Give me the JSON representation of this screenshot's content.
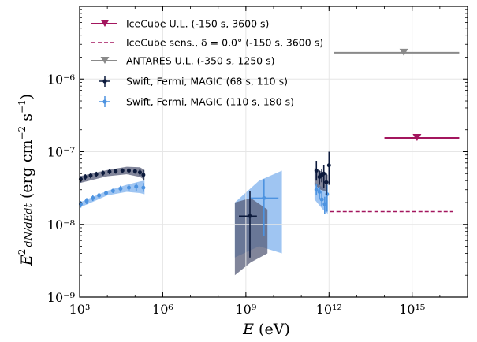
{
  "chart_data": {
    "type": "scatter",
    "xlabel": "E (eV)",
    "ylabel": "E² dN/dEdt (erg cm⁻² s⁻¹)",
    "x_scale": "log",
    "y_scale": "log",
    "xlim": [
      1000,
      1e+17
    ],
    "ylim": [
      1e-09,
      1e-05
    ],
    "x_ticks": [
      {
        "value": 1000.0,
        "label": "10³"
      },
      {
        "value": 1000000.0,
        "label": "10⁶"
      },
      {
        "value": 1000000000.0,
        "label": "10⁹"
      },
      {
        "value": 1000000000000.0,
        "label": "10¹²"
      },
      {
        "value": 1000000000000000.0,
        "label": "10¹⁵"
      }
    ],
    "y_ticks": [
      {
        "value": 1e-09,
        "label": "10⁻⁹"
      },
      {
        "value": 1e-08,
        "label": "10⁻⁸"
      },
      {
        "value": 1e-07,
        "label": "10⁻⁷"
      },
      {
        "value": 1e-06,
        "label": "10⁻⁶"
      }
    ],
    "grid": true,
    "legend_position": "top-left",
    "colors": {
      "icecube": "#a3165e",
      "antares": "#8a8a8a",
      "early": "#0c1a3c",
      "early_band": "#575c78",
      "late": "#4d93e0",
      "late_band": "#7fb2ee"
    },
    "series": [
      {
        "name": "IceCube U.L. (-150 s, 3600 s)",
        "kind": "upper_limit",
        "color": "#a3165e",
        "points": [
          {
            "x": 1500000000000000.0,
            "y": 1.55e-07,
            "xmin": 100000000000000.0,
            "xmax": 5e+16
          }
        ]
      },
      {
        "name": "IceCube sens., δ = 0.0° (-150 s, 3600 s)",
        "kind": "sensitivity_line",
        "color": "#a3165e",
        "segment": {
          "xmin": 1100000000000.0,
          "xmax": 3e+16,
          "y": 1.5e-08
        }
      },
      {
        "name": "ANTARES U.L. (-350 s, 1250 s)",
        "kind": "upper_limit",
        "color": "#8a8a8a",
        "points": [
          {
            "x": 500000000000000.0,
            "y": 2.3e-06,
            "xmin": 1500000000000.0,
            "xmax": 5e+16
          }
        ]
      },
      {
        "name": "Swift, Fermi, MAGIC (68 s, 110 s)",
        "kind": "points",
        "color": "#0c1a3c",
        "points": [
          {
            "x": 1100.0,
            "y": 4.2e-08,
            "ylo": 3.8e-08,
            "yhi": 4.6e-08
          },
          {
            "x": 1600.0,
            "y": 4.5e-08,
            "ylo": 4.1e-08,
            "yhi": 4.9e-08
          },
          {
            "x": 2500.0,
            "y": 4.7e-08,
            "ylo": 4.3e-08,
            "yhi": 5.1e-08
          },
          {
            "x": 4000.0,
            "y": 4.9e-08,
            "ylo": 4.5e-08,
            "yhi": 5.3e-08
          },
          {
            "x": 7000.0,
            "y": 5.1e-08,
            "ylo": 4.7e-08,
            "yhi": 5.5e-08
          },
          {
            "x": 12000.0,
            "y": 5.3e-08,
            "ylo": 4.9e-08,
            "yhi": 5.7e-08
          },
          {
            "x": 20000.0,
            "y": 5.4e-08,
            "ylo": 5e-08,
            "yhi": 5.8e-08
          },
          {
            "x": 35000.0,
            "y": 5.5e-08,
            "ylo": 5.1e-08,
            "yhi": 5.9e-08
          },
          {
            "x": 60000.0,
            "y": 5.5e-08,
            "ylo": 5.1e-08,
            "yhi": 5.9e-08
          },
          {
            "x": 100000.0,
            "y": 5.4e-08,
            "ylo": 5e-08,
            "yhi": 5.8e-08
          },
          {
            "x": 150000.0,
            "y": 5.2e-08,
            "ylo": 4.7e-08,
            "yhi": 5.7e-08
          },
          {
            "x": 200000.0,
            "y": 4.8e-08,
            "ylo": 4e-08,
            "yhi": 5.6e-08
          },
          {
            "x": 1400000000.0,
            "y": 1.3e-08,
            "ylo": 3.5e-09,
            "yhi": 2.9e-08,
            "xlo": 560000000.0,
            "xhi": 2500000000.0
          },
          {
            "x": 350000000000.0,
            "y": 5.5e-08,
            "ylo": 4e-08,
            "yhi": 7.5e-08
          },
          {
            "x": 450000000000.0,
            "y": 4.5e-08,
            "ylo": 3.5e-08,
            "yhi": 5.5e-08
          },
          {
            "x": 550000000000.0,
            "y": 4.8e-08,
            "ylo": 3.8e-08,
            "yhi": 5.8e-08
          },
          {
            "x": 650000000000.0,
            "y": 5e-08,
            "ylo": 3.2e-08,
            "yhi": 6.5e-08
          },
          {
            "x": 800000000000.0,
            "y": 3.8e-08,
            "ylo": 2.5e-08,
            "yhi": 5e-08
          },
          {
            "x": 1000000000000.0,
            "y": 6.5e-08,
            "ylo": 3.5e-08,
            "yhi": 1e-07
          }
        ],
        "band": [
          {
            "x": 1000.0,
            "lo": 3.7e-08,
            "hi": 4.6e-08
          },
          {
            "x": 10000.0,
            "lo": 4.6e-08,
            "hi": 5.6e-08
          },
          {
            "x": 50000.0,
            "lo": 4.9e-08,
            "hi": 6.2e-08
          },
          {
            "x": 150000.0,
            "lo": 4.5e-08,
            "hi": 6.1e-08
          },
          {
            "x": 220000.0,
            "lo": 4.1e-08,
            "hi": 5.6e-08
          }
        ],
        "band2": [
          {
            "x": 400000000.0,
            "lo": 2e-09,
            "hi": 2e-08
          },
          {
            "x": 1500000000.0,
            "lo": 3e-09,
            "hi": 2.3e-08
          },
          {
            "x": 6000000000.0,
            "lo": 4e-09,
            "hi": 1.6e-08
          }
        ],
        "band3": [
          {
            "x": 300000000000.0,
            "lo": 3.5e-08,
            "hi": 6e-08
          },
          {
            "x": 500000000000.0,
            "lo": 3e-08,
            "hi": 5.4e-08
          },
          {
            "x": 900000000000.0,
            "lo": 2.8e-08,
            "hi": 4.8e-08
          }
        ]
      },
      {
        "name": "Swift, Fermi, MAGIC (110 s, 180 s)",
        "kind": "points",
        "color": "#4d93e0",
        "points": [
          {
            "x": 1100.0,
            "y": 1.9e-08,
            "ylo": 1.7e-08,
            "yhi": 2.1e-08
          },
          {
            "x": 1800.0,
            "y": 2.1e-08,
            "ylo": 1.9e-08,
            "yhi": 2.3e-08
          },
          {
            "x": 3000.0,
            "y": 2.3e-08,
            "ylo": 2.1e-08,
            "yhi": 2.5e-08
          },
          {
            "x": 5000.0,
            "y": 2.5e-08,
            "ylo": 2.3e-08,
            "yhi": 2.7e-08
          },
          {
            "x": 9000.0,
            "y": 2.7e-08,
            "ylo": 2.5e-08,
            "yhi": 2.9e-08
          },
          {
            "x": 16000.0,
            "y": 2.9e-08,
            "ylo": 2.7e-08,
            "yhi": 3.1e-08
          },
          {
            "x": 30000.0,
            "y": 3.1e-08,
            "ylo": 2.8e-08,
            "yhi": 3.4e-08
          },
          {
            "x": 60000.0,
            "y": 3.2e-08,
            "ylo": 2.9e-08,
            "yhi": 3.5e-08
          },
          {
            "x": 110000.0,
            "y": 3.3e-08,
            "ylo": 2.9e-08,
            "yhi": 3.7e-08
          },
          {
            "x": 200000.0,
            "y": 3.2e-08,
            "ylo": 2.8e-08,
            "yhi": 3.7e-08
          },
          {
            "x": 4500000000.0,
            "y": 2.3e-08,
            "ylo": 7e-09,
            "yhi": 4.2e-08,
            "xlo": 1500000000.0,
            "xhi": 15000000000.0
          },
          {
            "x": 350000000000.0,
            "y": 3e-08,
            "ylo": 2.5e-08,
            "yhi": 3.6e-08
          },
          {
            "x": 450000000000.0,
            "y": 2.8e-08,
            "ylo": 2.2e-08,
            "yhi": 3.3e-08
          },
          {
            "x": 550000000000.0,
            "y": 2.2e-08,
            "ylo": 1.8e-08,
            "yhi": 2.8e-08
          },
          {
            "x": 700000000000.0,
            "y": 1.9e-08,
            "ylo": 1.4e-08,
            "yhi": 2.4e-08
          },
          {
            "x": 850000000000.0,
            "y": 2.6e-08,
            "ylo": 1.5e-08,
            "yhi": 3.5e-08
          }
        ],
        "band": [
          {
            "x": 1000.0,
            "lo": 1.7e-08,
            "hi": 2e-08
          },
          {
            "x": 10000.0,
            "lo": 2.5e-08,
            "hi": 2.9e-08
          },
          {
            "x": 50000.0,
            "lo": 2.8e-08,
            "hi": 3.5e-08
          },
          {
            "x": 150000.0,
            "lo": 2.7e-08,
            "hi": 3.9e-08
          },
          {
            "x": 220000.0,
            "lo": 2.6e-08,
            "hi": 4e-08
          }
        ],
        "band2": [
          {
            "x": 400000000.0,
            "lo": 3.5e-09,
            "hi": 2e-08
          },
          {
            "x": 3000000000.0,
            "lo": 5e-09,
            "hi": 4e-08
          },
          {
            "x": 20000000000.0,
            "lo": 4e-09,
            "hi": 5.5e-08
          }
        ],
        "band3": [
          {
            "x": 300000000000.0,
            "lo": 2.2e-08,
            "hi": 3.8e-08
          },
          {
            "x": 600000000000.0,
            "lo": 1.6e-08,
            "hi": 3.2e-08
          },
          {
            "x": 900000000000.0,
            "lo": 1.4e-08,
            "hi": 2.8e-08
          }
        ]
      }
    ]
  },
  "legend": {
    "items": [
      {
        "key": "icecube_ul",
        "label": "IceCube U.L. (-150 s, 3600 s)"
      },
      {
        "key": "icecube_sens",
        "label": "IceCube sens., δ = 0.0° (-150 s, 3600 s)"
      },
      {
        "key": "antares_ul",
        "label": "ANTARES U.L. (-350 s, 1250 s)"
      },
      {
        "key": "early",
        "label": "Swift, Fermi, MAGIC (68 s, 110 s)"
      },
      {
        "key": "late",
        "label": "Swift, Fermi, MAGIC (110 s, 180 s)"
      }
    ]
  }
}
